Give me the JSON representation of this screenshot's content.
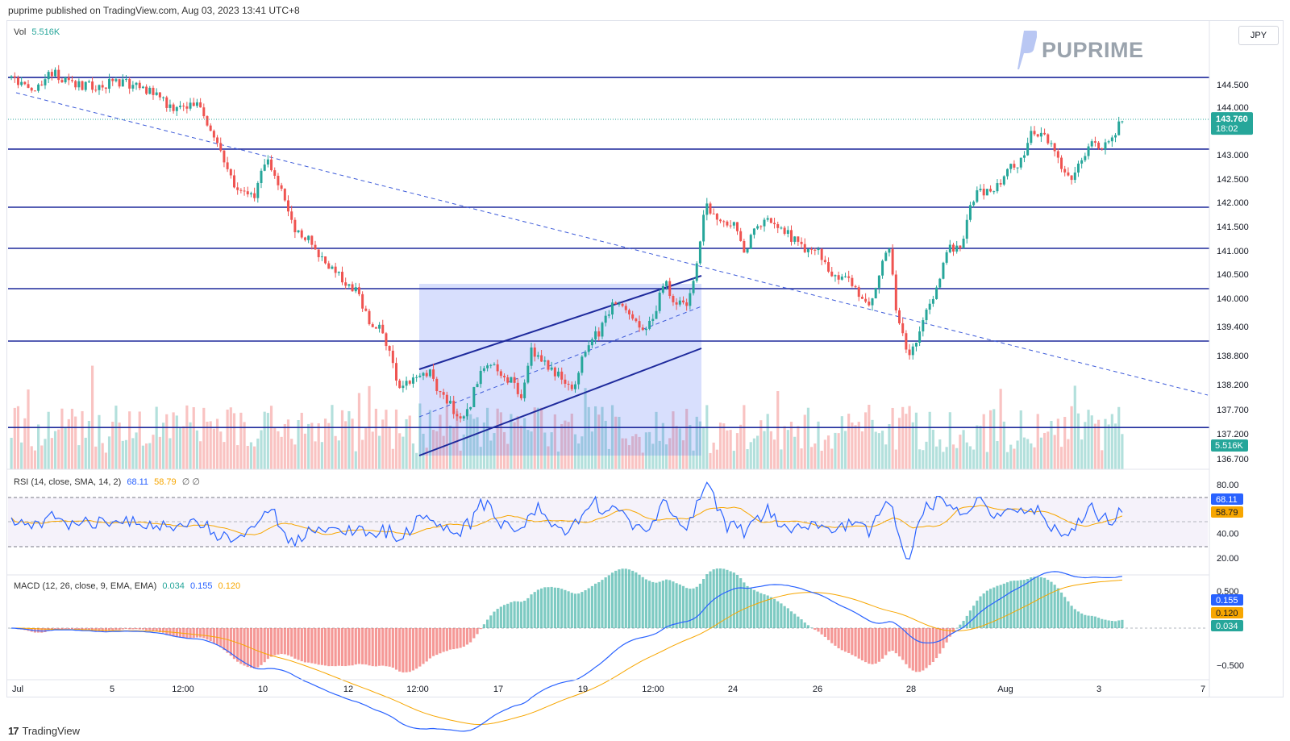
{
  "header": {
    "published": "puprime published on TradingView.com, Aug 03, 2023 13:41 UTC+8"
  },
  "footer": {
    "brand": "TradingView",
    "mark": "17"
  },
  "logo": {
    "text": "PUPRIME"
  },
  "currency_button": {
    "label": "JPY"
  },
  "legends": {
    "vol": {
      "label": "Vol",
      "value": "5.516K"
    },
    "rsi": {
      "label": "RSI (14, close, SMA, 14, 2)",
      "v1": "68.11",
      "v2": "58.79",
      "v3": "∅ ∅"
    },
    "macd": {
      "label": "MACD (12, 26, close, 9, EMA, EMA)",
      "v1": "0.034",
      "v2": "0.155",
      "v3": "0.120"
    }
  },
  "colors": {
    "up": "#26a69a",
    "down": "#ef5350",
    "level": "#1e2a9c",
    "trend": "#3d5bd9",
    "rsi_line": "#2962ff",
    "rsi_ma": "#f7a600",
    "macd_line": "#2962ff",
    "signal_line": "#f7a600"
  },
  "chart_data": {
    "type": "candlestick",
    "title": "",
    "x_tick_labels": [
      "Jul",
      "5",
      "12:00",
      "10",
      "12",
      "12:00",
      "17",
      "19",
      "12:00",
      "24",
      "26",
      "28",
      "Aug",
      "3",
      "7"
    ],
    "price_axis": {
      "ticks": [
        144.5,
        144.0,
        143.0,
        142.5,
        142.0,
        141.5,
        141.0,
        140.5,
        140.0,
        139.4,
        138.8,
        138.2,
        137.7,
        137.2,
        136.7
      ],
      "tick_labels": [
        "144.500",
        "144.000",
        "143.000",
        "142.500",
        "142.000",
        "141.500",
        "141.000",
        "140.500",
        "140.000",
        "139.400",
        "138.800",
        "138.200",
        "137.700",
        "137.200",
        "136.700"
      ],
      "range": [
        136.6,
        145.5
      ]
    },
    "last_price": {
      "value": 143.76,
      "label": "143.760",
      "countdown": "18:02"
    },
    "last_volume": {
      "label": "5.516K"
    },
    "horizontal_levels": [
      144.66,
      143.12,
      141.9,
      141.05,
      140.2,
      139.1,
      137.33
    ],
    "price_path": [
      [
        0,
        144.65
      ],
      [
        2,
        144.3
      ],
      [
        4,
        144.8
      ],
      [
        6,
        144.5
      ],
      [
        8,
        144.45
      ],
      [
        10,
        144.55
      ],
      [
        12,
        144.5
      ],
      [
        14,
        144.3
      ],
      [
        15,
        144.1
      ],
      [
        17,
        143.9
      ],
      [
        18,
        144.1
      ],
      [
        19,
        143.8
      ],
      [
        20,
        143.3
      ],
      [
        21,
        142.9
      ],
      [
        22,
        142.2
      ],
      [
        24,
        142.2
      ],
      [
        25,
        142.9
      ],
      [
        26,
        142.5
      ],
      [
        27,
        141.9
      ],
      [
        28,
        141.4
      ],
      [
        29,
        141.3
      ],
      [
        30,
        141.0
      ],
      [
        31,
        140.7
      ],
      [
        32,
        140.5
      ],
      [
        33,
        140.3
      ],
      [
        34,
        140.1
      ],
      [
        35,
        139.5
      ],
      [
        36,
        139.4
      ],
      [
        37,
        138.9
      ],
      [
        38,
        138.2
      ],
      [
        39,
        138.3
      ],
      [
        40,
        138.4
      ],
      [
        41,
        138.45
      ],
      [
        42,
        138.0
      ],
      [
        43,
        137.8
      ],
      [
        44,
        137.4
      ],
      [
        45,
        137.8
      ],
      [
        46,
        138.5
      ],
      [
        47,
        138.7
      ],
      [
        48,
        138.4
      ],
      [
        49,
        138.3
      ],
      [
        50,
        138.0
      ],
      [
        51,
        138.9
      ],
      [
        52,
        138.7
      ],
      [
        53,
        138.5
      ],
      [
        54,
        138.3
      ],
      [
        55,
        138.0
      ],
      [
        56,
        138.8
      ],
      [
        57,
        139.1
      ],
      [
        58,
        139.4
      ],
      [
        59,
        139.9
      ],
      [
        60,
        139.8
      ],
      [
        61,
        139.6
      ],
      [
        62,
        139.3
      ],
      [
        63,
        139.6
      ],
      [
        64,
        140.4
      ],
      [
        65,
        140.0
      ],
      [
        66,
        139.8
      ],
      [
        67,
        140.3
      ],
      [
        68,
        141.9
      ],
      [
        69,
        141.8
      ],
      [
        70,
        141.6
      ],
      [
        71,
        141.5
      ],
      [
        72,
        141.0
      ],
      [
        73,
        141.5
      ],
      [
        74,
        141.6
      ],
      [
        75,
        141.5
      ],
      [
        76,
        141.4
      ],
      [
        77,
        141.2
      ],
      [
        78,
        141.0
      ],
      [
        79,
        141.1
      ],
      [
        80,
        140.6
      ],
      [
        81,
        140.4
      ],
      [
        82,
        140.5
      ],
      [
        83,
        140.1
      ],
      [
        84,
        139.9
      ],
      [
        85,
        140.3
      ],
      [
        86,
        141.2
      ],
      [
        87,
        139.5
      ],
      [
        88,
        138.8
      ],
      [
        89,
        139.2
      ],
      [
        90,
        139.8
      ],
      [
        91,
        140.4
      ],
      [
        92,
        141.1
      ],
      [
        93,
        141.0
      ],
      [
        94,
        141.8
      ],
      [
        95,
        142.3
      ],
      [
        96,
        142.2
      ],
      [
        97,
        142.4
      ],
      [
        98,
        142.7
      ],
      [
        99,
        142.8
      ],
      [
        100,
        143.5
      ],
      [
        101,
        143.4
      ],
      [
        102,
        143.2
      ],
      [
        103,
        142.8
      ],
      [
        104,
        142.4
      ],
      [
        105,
        142.9
      ],
      [
        106,
        143.3
      ],
      [
        107,
        143.2
      ],
      [
        108,
        143.3
      ],
      [
        109,
        143.76
      ]
    ],
    "rsi_axis": {
      "ticks": [
        80,
        60,
        40,
        20
      ],
      "tick_labels": [
        "80.00",
        "",
        "40.00",
        "20.00"
      ],
      "bands": [
        70,
        30
      ]
    },
    "rsi": {
      "last_value": "68.11",
      "last_ma": "58.79"
    },
    "macd_axis": {
      "ticks": [
        0.5,
        -0.5
      ],
      "tick_labels": [
        "0.500",
        "−0.500"
      ]
    },
    "macd": {
      "macd_value": "0.155",
      "signal_value": "0.120",
      "histogram_value": "0.034"
    }
  }
}
